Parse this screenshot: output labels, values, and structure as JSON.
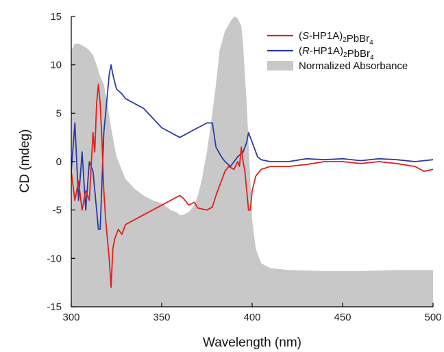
{
  "chart_data": {
    "type": "line",
    "xlabel": "Wavelength (nm)",
    "ylabel": "CD (mdeg)",
    "xlim": [
      300,
      500
    ],
    "ylim": [
      -15,
      15
    ],
    "xticks": [
      300,
      350,
      400,
      450,
      500
    ],
    "yticks": [
      15,
      10,
      5,
      0,
      -5,
      -10,
      -15
    ],
    "grid": false,
    "legend_position": "top-right",
    "legend": [
      {
        "series": "S",
        "prefix": "(",
        "italic": "S",
        "mid": "-HP1A)",
        "sub1": "2",
        "mid2": "PbBr",
        "sub2": "4"
      },
      {
        "series": "R",
        "prefix": "(",
        "italic": "R",
        "mid": "-HP1A)",
        "sub1": "2",
        "mid2": "PbBr",
        "sub2": "4"
      },
      {
        "series": "abs",
        "label": "Normalized Absorbance"
      }
    ],
    "series": [
      {
        "key": "S",
        "color": "#e0201c",
        "x": [
          300,
          302,
          304,
          306,
          308,
          310,
          312,
          313,
          314,
          315,
          316,
          317,
          318,
          319,
          320,
          321,
          322,
          323,
          324,
          326,
          328,
          330,
          335,
          340,
          345,
          350,
          355,
          360,
          362,
          365,
          368,
          370,
          375,
          378,
          380,
          383,
          385,
          387,
          390,
          392,
          393,
          394,
          395,
          396,
          397,
          398,
          399,
          400,
          402,
          405,
          410,
          420,
          430,
          440,
          450,
          460,
          470,
          480,
          490,
          495,
          500
        ],
        "y": [
          -1,
          -4,
          -2,
          -5,
          -3,
          -4,
          3,
          1,
          6,
          8,
          6,
          2,
          -3,
          -6,
          -8,
          -10,
          -13,
          -9,
          -8,
          -7,
          -7.5,
          -6.5,
          -6,
          -5.5,
          -5,
          -4.5,
          -4,
          -3.5,
          -3.8,
          -4.5,
          -4.2,
          -4.8,
          -5,
          -4.7,
          -3.5,
          -2,
          -1,
          -0.5,
          -0.8,
          0,
          -0.5,
          1.5,
          0,
          -1,
          -3,
          -5,
          -5,
          -3,
          -1.5,
          -0.8,
          -0.5,
          -0.5,
          -0.3,
          0,
          0,
          -0.2,
          0,
          -0.2,
          -0.5,
          -1,
          -0.8
        ]
      },
      {
        "key": "R",
        "color": "#2b3aa5",
        "x": [
          300,
          302,
          304,
          306,
          308,
          310,
          312,
          314,
          315,
          316,
          317,
          318,
          319,
          320,
          321,
          322,
          323,
          325,
          328,
          330,
          335,
          340,
          345,
          350,
          355,
          360,
          365,
          370,
          375,
          378,
          380,
          383,
          385,
          388,
          390,
          392,
          395,
          397,
          398,
          400,
          403,
          405,
          410,
          420,
          430,
          440,
          450,
          460,
          470,
          480,
          490,
          500
        ],
        "y": [
          -1,
          4,
          -4,
          1,
          -5,
          0,
          -1,
          -5,
          -7,
          -7,
          -2,
          3,
          5,
          7,
          9,
          10,
          9,
          7.5,
          7,
          6.5,
          6,
          5.5,
          4.5,
          3.5,
          3,
          2.5,
          3,
          3.5,
          4,
          4,
          1.5,
          0.5,
          0,
          -0.5,
          0,
          0.5,
          1,
          2,
          3,
          2,
          0.5,
          0.2,
          0,
          0,
          0.3,
          0.2,
          0.3,
          0.1,
          0.3,
          0.2,
          0,
          0.2
        ]
      },
      {
        "key": "abs",
        "color": "#c8c8c8",
        "x": [
          300,
          302,
          304,
          306,
          308,
          310,
          312,
          314,
          316,
          318,
          320,
          322,
          325,
          330,
          335,
          340,
          345,
          350,
          355,
          358,
          360,
          362,
          365,
          368,
          370,
          372,
          375,
          378,
          380,
          382,
          385,
          388,
          390,
          392,
          394,
          395,
          396,
          397,
          398,
          399,
          400,
          402,
          405,
          410,
          420,
          440,
          460,
          480,
          500
        ],
        "y": [
          11.5,
          12.2,
          12.2,
          12,
          11.8,
          11.5,
          11,
          10,
          8.8,
          8,
          6,
          3.5,
          0.5,
          -1.8,
          -2.8,
          -3.5,
          -4,
          -4.3,
          -5,
          -5.2,
          -5.5,
          -5.5,
          -5.2,
          -4.5,
          -3.5,
          -2,
          1,
          5,
          8,
          11.5,
          13.5,
          14.5,
          15,
          14.8,
          14,
          12,
          9,
          6,
          2,
          -2,
          -6,
          -9,
          -10.5,
          -11,
          -11.2,
          -11.3,
          -11.3,
          -11.2,
          -11.2
        ]
      }
    ]
  }
}
